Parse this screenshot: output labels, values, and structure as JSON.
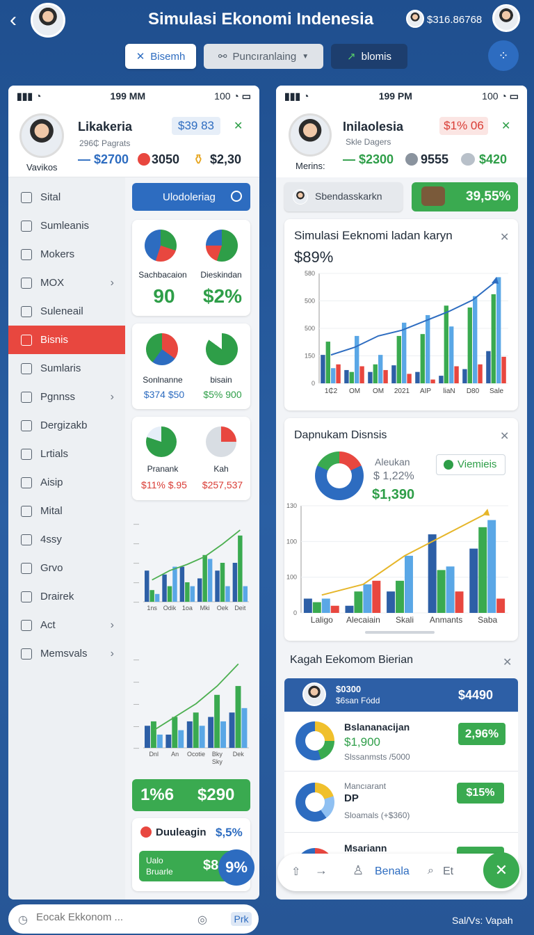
{
  "header": {
    "title": "Simulasi Ekonomi Indenesia",
    "balance": "$316.86768",
    "tabs": [
      {
        "label": "Bisemh",
        "icon": "shuffle-icon"
      },
      {
        "label": "Puncıranlaing",
        "icon": "link-icon"
      },
      {
        "label": "blomis",
        "icon": "trend-icon"
      }
    ]
  },
  "left": {
    "time": "199 MM",
    "battery": "100",
    "profile": {
      "name": "Likakeria",
      "badge": "$39 83",
      "sub": "296₵ Pagrats",
      "caption": "Vavikos"
    },
    "stats": [
      {
        "value": "— $2700",
        "color": "#2d6cc0"
      },
      {
        "value": "3050",
        "color": "#1f2a37"
      },
      {
        "value": "$2,30",
        "color": "#1f2a37"
      }
    ],
    "sidebar": [
      {
        "label": "Sital"
      },
      {
        "label": "Sumleanis"
      },
      {
        "label": "Mokers"
      },
      {
        "label": "MOX",
        "chev": true
      },
      {
        "label": "Suleneail"
      },
      {
        "label": "Bisnis",
        "active": true
      },
      {
        "label": "Sumlaris"
      },
      {
        "label": "Pgnnss",
        "chev": true
      },
      {
        "label": "Dergizakb"
      },
      {
        "label": "Lrtials"
      },
      {
        "label": "Aisip"
      },
      {
        "label": "Mital"
      },
      {
        "label": "4ssy"
      },
      {
        "label": "Grvo"
      },
      {
        "label": "Drairek"
      },
      {
        "label": "Act",
        "chev": true
      },
      {
        "label": "Memsvals",
        "chev": true
      }
    ],
    "update_button": "Ulodoleriag",
    "metric_cards": [
      {
        "l1": "Sachbacaion",
        "v1": "90",
        "l2": "Dieskindan",
        "v2": "$2%"
      },
      {
        "l1": "Sonlnanne",
        "v1": "$374 $50",
        "l2": "bisain",
        "v2": "$5% 900"
      },
      {
        "l1": "Pranank",
        "v1": "$11% $.95",
        "l2": "Kah",
        "v2": "$257,537"
      }
    ],
    "chart1_ticks": [
      "1ns",
      "Odik",
      "1oa",
      "Mki",
      "Oek",
      "Deit"
    ],
    "chart2_ticks": [
      "Dnl",
      "An",
      "Ocotie",
      "Bky\nSky",
      "Dek"
    ],
    "green_bar": {
      "left": "1%6",
      "right": "$290"
    },
    "dual_card": {
      "title": "Duuleagin",
      "pct": "$,5%",
      "sub1": "Ualo",
      "sub2": "Bruarle",
      "value": "$8",
      "fab": "9%"
    },
    "search_placeholder": "Eocak Ekkonom ...",
    "search_btn": "Prk"
  },
  "right": {
    "time": "199 PM",
    "battery": "100",
    "profile": {
      "name": "Inilaolesia",
      "badge": "$1% 06",
      "sub": "Skle Dagers",
      "caption": "Merins:"
    },
    "stats": [
      {
        "value": "— $2300",
        "color": "#2e9e48"
      },
      {
        "value": "9555",
        "color": "#1f2a37"
      },
      {
        "value": "$420",
        "color": "#2e9e48"
      }
    ],
    "chip_left": "Sbendasskarkn",
    "chip_right": "39,55%",
    "chart_card": {
      "title": "Simulasi Eeknomi ladan karyn",
      "value": "$89%"
    },
    "dist_card": {
      "title": "Dapnukam Disnsis",
      "label": "Aleukan",
      "pct": "$ 1,22%",
      "value": "$1,390",
      "button": "Viemieis"
    },
    "list_title": "Kagah Eekomom Bierian",
    "list_header": {
      "line1": "$0300",
      "line2": "$6san Fódd",
      "value": "$4490"
    },
    "list_items": [
      {
        "title": "Bslananacijan",
        "value": "$1,900",
        "sub": "Slssanmsts /5000",
        "badge": "2,96%"
      },
      {
        "title": "Mancıarant",
        "value": "DP",
        "sub": "Sloamals (+$360)",
        "badge": "$15%"
      },
      {
        "title": "Msariann",
        "value": "",
        "sub": "",
        "badge": ""
      }
    ],
    "bottom_nav": {
      "active": "Benala",
      "search": "Et"
    },
    "footer": "Sal/Vs: Vapah"
  },
  "chart_data": [
    {
      "type": "bar",
      "title": "Simulasi Eeknomi ladan karyn",
      "categories": [
        "1₵2",
        "OM",
        "OM",
        "2021",
        "AIP",
        "liaN",
        "D80",
        "Sale"
      ],
      "yticks": [
        "0",
        "150",
        "500",
        "500",
        "580"
      ],
      "series": [
        {
          "values": [
            150,
            70,
            60,
            95,
            60,
            40,
            75,
            170
          ]
        },
        {
          "values": [
            220,
            60,
            100,
            250,
            260,
            410,
            400,
            470
          ]
        },
        {
          "values": [
            80,
            250,
            150,
            320,
            360,
            300,
            460,
            560
          ]
        },
        {
          "values": [
            100,
            90,
            70,
            50,
            20,
            90,
            100,
            140
          ]
        }
      ],
      "line": [
        150,
        190,
        250,
        280,
        330,
        380,
        440,
        540
      ]
    },
    {
      "type": "bar",
      "title": "Dapnukam Disnsis",
      "categories": [
        "Laligo",
        "Alecaiain",
        "Skali",
        "Anmants",
        "Saba"
      ],
      "yticks": [
        "0",
        "100",
        "100",
        "130"
      ],
      "series": [
        {
          "values": [
            20,
            10,
            30,
            110,
            90
          ]
        },
        {
          "values": [
            15,
            30,
            45,
            60,
            120
          ]
        },
        {
          "values": [
            20,
            40,
            80,
            65,
            130
          ]
        },
        {
          "values": [
            10,
            45,
            0,
            30,
            20
          ]
        }
      ],
      "line": [
        25,
        40,
        80,
        110,
        140
      ]
    }
  ]
}
